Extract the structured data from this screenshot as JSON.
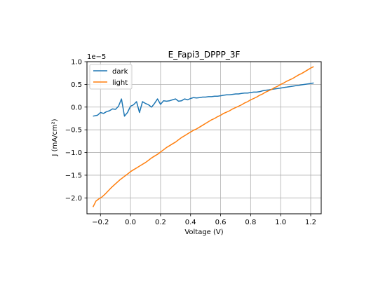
{
  "chart_data": {
    "type": "line",
    "title": "E_Fapi3_DPPP_3F",
    "xlabel": "Voltage (V)",
    "ylabel": "J (mA/cm²)",
    "y_offset_label": "1e−5",
    "xlim": [
      -0.29,
      1.27
    ],
    "ylim": [
      -2.35,
      1.0
    ],
    "xticks": [
      -0.2,
      0.0,
      0.2,
      0.4,
      0.6,
      0.8,
      1.0,
      1.2
    ],
    "xtick_labels": [
      "−0.2",
      "0.0",
      "0.2",
      "0.4",
      "0.6",
      "0.8",
      "1.0",
      "1.2"
    ],
    "yticks": [
      -2.0,
      -1.5,
      -1.0,
      -0.5,
      0.0,
      0.5,
      1.0
    ],
    "ytick_labels": [
      "−2.0",
      "−1.5",
      "−1.0",
      "−0.5",
      "0.0",
      "0.5",
      "1.0"
    ],
    "grid": true,
    "legend_position": "top-left",
    "series": [
      {
        "name": "dark",
        "color": "#1f77b4",
        "x": [
          -0.25,
          -0.22,
          -0.2,
          -0.18,
          -0.16,
          -0.14,
          -0.12,
          -0.1,
          -0.08,
          -0.06,
          -0.04,
          -0.02,
          0.0,
          0.02,
          0.04,
          0.06,
          0.08,
          0.1,
          0.12,
          0.14,
          0.16,
          0.18,
          0.2,
          0.22,
          0.24,
          0.26,
          0.28,
          0.3,
          0.32,
          0.34,
          0.36,
          0.38,
          0.4,
          0.42,
          0.44,
          0.46,
          0.48,
          0.5,
          0.52,
          0.54,
          0.56,
          0.58,
          0.6,
          0.62,
          0.64,
          0.66,
          0.68,
          0.7,
          0.72,
          0.74,
          0.76,
          0.78,
          0.8,
          0.82,
          0.84,
          0.86,
          0.88,
          0.9,
          0.92,
          0.94,
          0.96,
          0.98,
          1.0,
          1.02,
          1.04,
          1.06,
          1.08,
          1.1,
          1.12,
          1.14,
          1.16,
          1.18,
          1.2,
          1.22
        ],
        "values": [
          -0.2,
          -0.18,
          -0.12,
          -0.14,
          -0.1,
          -0.08,
          -0.04,
          -0.05,
          0.02,
          0.18,
          -0.2,
          -0.12,
          0.02,
          0.05,
          0.12,
          -0.12,
          0.12,
          0.08,
          0.05,
          0.0,
          0.08,
          0.18,
          0.06,
          0.14,
          0.13,
          0.14,
          0.16,
          0.18,
          0.13,
          0.14,
          0.18,
          0.16,
          0.19,
          0.21,
          0.2,
          0.21,
          0.22,
          0.22,
          0.23,
          0.23,
          0.24,
          0.24,
          0.25,
          0.26,
          0.27,
          0.27,
          0.28,
          0.29,
          0.29,
          0.3,
          0.31,
          0.31,
          0.32,
          0.33,
          0.33,
          0.34,
          0.36,
          0.37,
          0.38,
          0.39,
          0.4,
          0.41,
          0.42,
          0.43,
          0.44,
          0.45,
          0.46,
          0.47,
          0.48,
          0.49,
          0.5,
          0.51,
          0.52,
          0.53
        ]
      },
      {
        "name": "light",
        "color": "#ff7f0e",
        "x": [
          -0.25,
          -0.23,
          -0.21,
          -0.19,
          -0.17,
          -0.15,
          -0.13,
          -0.11,
          -0.09,
          -0.07,
          -0.05,
          -0.03,
          -0.01,
          0.0,
          0.02,
          0.04,
          0.06,
          0.08,
          0.1,
          0.12,
          0.14,
          0.16,
          0.18,
          0.2,
          0.22,
          0.24,
          0.26,
          0.28,
          0.3,
          0.32,
          0.34,
          0.36,
          0.38,
          0.4,
          0.42,
          0.44,
          0.46,
          0.48,
          0.5,
          0.52,
          0.54,
          0.56,
          0.58,
          0.6,
          0.62,
          0.64,
          0.66,
          0.68,
          0.7,
          0.72,
          0.74,
          0.76,
          0.78,
          0.8,
          0.82,
          0.84,
          0.86,
          0.88,
          0.9,
          0.92,
          0.94,
          0.96,
          0.98,
          1.0,
          1.02,
          1.04,
          1.06,
          1.08,
          1.1,
          1.12,
          1.14,
          1.16,
          1.18,
          1.2,
          1.22
        ],
        "values": [
          -2.2,
          -2.07,
          -2.02,
          -1.98,
          -1.92,
          -1.85,
          -1.78,
          -1.72,
          -1.66,
          -1.6,
          -1.55,
          -1.5,
          -1.45,
          -1.42,
          -1.38,
          -1.34,
          -1.3,
          -1.26,
          -1.22,
          -1.17,
          -1.12,
          -1.08,
          -1.04,
          -0.99,
          -0.94,
          -0.89,
          -0.85,
          -0.81,
          -0.77,
          -0.72,
          -0.67,
          -0.63,
          -0.59,
          -0.55,
          -0.51,
          -0.48,
          -0.44,
          -0.4,
          -0.36,
          -0.32,
          -0.28,
          -0.25,
          -0.21,
          -0.18,
          -0.14,
          -0.11,
          -0.08,
          -0.04,
          -0.01,
          0.02,
          0.05,
          0.09,
          0.12,
          0.16,
          0.19,
          0.22,
          0.26,
          0.29,
          0.33,
          0.36,
          0.39,
          0.43,
          0.46,
          0.5,
          0.53,
          0.57,
          0.6,
          0.63,
          0.67,
          0.71,
          0.74,
          0.78,
          0.82,
          0.86,
          0.89
        ]
      }
    ]
  }
}
